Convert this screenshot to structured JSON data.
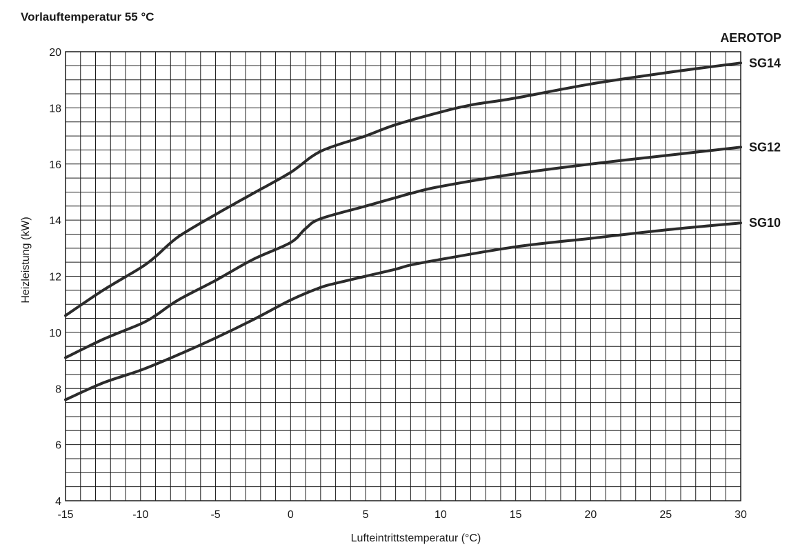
{
  "chart_data": {
    "type": "line",
    "title": "Vorlauftemperatur  55 °C",
    "brand": "AEROTOP",
    "xlabel": "Lufteintrittstemperatur (°C)",
    "ylabel": "Heizleistung (kW)",
    "xlim": [
      -15,
      30
    ],
    "ylim": [
      4,
      20
    ],
    "x_ticks": [
      "-15",
      "-10",
      "-5",
      "0",
      "5",
      "10",
      "15",
      "20",
      "25",
      "30"
    ],
    "y_ticks": [
      "4",
      "6",
      "8",
      "10",
      "12",
      "14",
      "16",
      "18",
      "20"
    ],
    "grid": true,
    "series": [
      {
        "name": "SG14",
        "x": [
          -15,
          -12.5,
          -10,
          -9,
          -7.5,
          -5,
          -2.5,
          0,
          2,
          5,
          7,
          10,
          12,
          15,
          20,
          25,
          30
        ],
        "y": [
          10.6,
          11.5,
          12.3,
          12.7,
          13.4,
          14.2,
          14.95,
          15.7,
          16.45,
          17.0,
          17.4,
          17.85,
          18.1,
          18.35,
          18.85,
          19.25,
          19.6
        ]
      },
      {
        "name": "SG12",
        "x": [
          -15,
          -12.5,
          -10,
          -9,
          -7.5,
          -5,
          -2.5,
          0,
          1,
          2,
          5,
          7,
          8,
          10,
          15,
          20,
          25,
          30
        ],
        "y": [
          9.1,
          9.75,
          10.3,
          10.6,
          11.15,
          11.85,
          12.6,
          13.2,
          13.7,
          14.05,
          14.5,
          14.8,
          14.95,
          15.2,
          15.65,
          16.0,
          16.3,
          16.6
        ]
      },
      {
        "name": "SG10",
        "x": [
          -15,
          -12.5,
          -10,
          -7.5,
          -5,
          -2.5,
          0,
          2,
          3,
          5,
          7,
          8,
          10,
          15,
          20,
          25,
          30
        ],
        "y": [
          7.6,
          8.2,
          8.65,
          9.2,
          9.8,
          10.45,
          11.15,
          11.6,
          11.75,
          12.0,
          12.25,
          12.4,
          12.6,
          13.05,
          13.35,
          13.65,
          13.9
        ]
      }
    ]
  }
}
